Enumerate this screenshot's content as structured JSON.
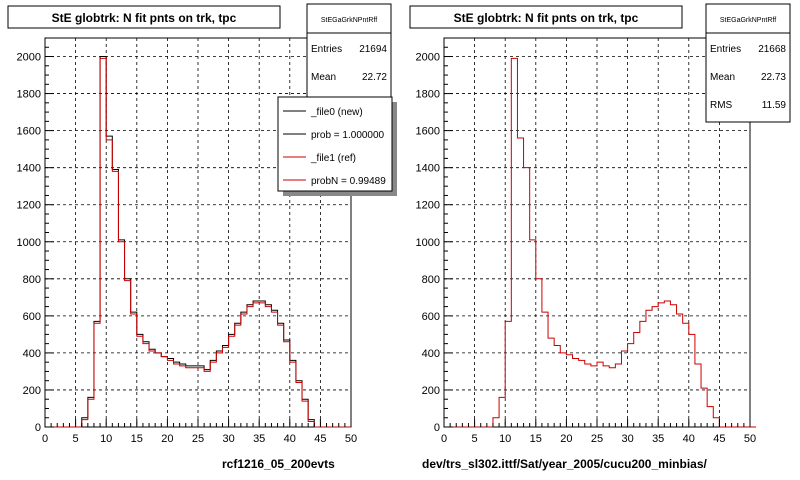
{
  "colors": {
    "new": "#000000",
    "ref": "#cc0000",
    "grid": "#000000",
    "frame": "#000000"
  },
  "left": {
    "title": "StE globtrk: N fit pnts on trk, tpc",
    "stats": {
      "name": "StEGaGrkNPntRff",
      "rows": [
        {
          "label": "Entries",
          "value": "21694"
        },
        {
          "label": "Mean",
          "value": "22.72"
        }
      ]
    },
    "legend": {
      "items": [
        {
          "label": "_file0 (new)",
          "color": "#000000"
        },
        {
          "label": "prob = 1.000000",
          "color": "#000000"
        },
        {
          "label": "_file1 (ref)",
          "color": "#cc0000"
        },
        {
          "label": "probN = 0.99489",
          "color": "#cc0000"
        }
      ]
    },
    "footer": "rcf1216_05_200evts"
  },
  "right": {
    "title": "StE globtrk: N fit pnts on trk, tpc",
    "stats": {
      "name": "StEGaGrkNPntRff",
      "rows": [
        {
          "label": "Entries",
          "value": "21668"
        },
        {
          "label": "Mean",
          "value": "22.73"
        },
        {
          "label": "RMS",
          "value": "11.59"
        }
      ]
    },
    "footer": "dev/trs_sl302.ittf/Sat/year_2005/cucu200_minbias/"
  },
  "chart_data": [
    {
      "type": "histogram",
      "title": "StE globtrk: N fit pnts on trk, tpc",
      "xlim": [
        0,
        50
      ],
      "ylim": [
        0,
        2100
      ],
      "xticks": [
        0,
        5,
        10,
        15,
        20,
        25,
        30,
        35,
        40,
        45,
        50
      ],
      "yticks": [
        0,
        200,
        400,
        600,
        800,
        1000,
        1200,
        1400,
        1600,
        1800,
        2000
      ],
      "bin_width": 1,
      "grid": true,
      "legend_position": "top-right",
      "series": [
        {
          "name": "_file0 (new)",
          "color": "#000000",
          "values": [
            0,
            0,
            0,
            0,
            0,
            0,
            50,
            160,
            570,
            2000,
            1570,
            1390,
            1010,
            800,
            620,
            500,
            460,
            420,
            400,
            380,
            370,
            350,
            340,
            330,
            330,
            330,
            310,
            360,
            410,
            440,
            500,
            560,
            620,
            660,
            680,
            680,
            660,
            630,
            560,
            470,
            360,
            250,
            150,
            40,
            0,
            0,
            0,
            0,
            0,
            0
          ]
        },
        {
          "name": "_file1 (ref)",
          "color": "#cc0000",
          "values": [
            0,
            0,
            0,
            0,
            0,
            0,
            40,
            150,
            560,
            1990,
            1550,
            1380,
            1000,
            790,
            610,
            490,
            450,
            410,
            400,
            380,
            360,
            340,
            330,
            320,
            320,
            320,
            300,
            350,
            400,
            430,
            490,
            550,
            610,
            650,
            670,
            670,
            650,
            620,
            550,
            460,
            350,
            240,
            140,
            30,
            0,
            0,
            0,
            0,
            0,
            0
          ]
        }
      ]
    },
    {
      "type": "histogram",
      "title": "StE globtrk: N fit pnts on trk, tpc",
      "xlim": [
        0,
        50
      ],
      "ylim": [
        0,
        2100
      ],
      "xticks": [
        0,
        5,
        10,
        15,
        20,
        25,
        30,
        35,
        40,
        45,
        50
      ],
      "yticks": [
        0,
        200,
        400,
        600,
        800,
        1000,
        1200,
        1400,
        1600,
        1800,
        2000
      ],
      "bin_width": 1,
      "grid": true,
      "series": [
        {
          "color": "#cc0000",
          "values": [
            0,
            0,
            0,
            0,
            0,
            0,
            0,
            0,
            50,
            160,
            570,
            1990,
            1560,
            1400,
            1010,
            800,
            620,
            480,
            440,
            400,
            390,
            370,
            360,
            340,
            330,
            350,
            330,
            320,
            340,
            410,
            450,
            510,
            570,
            630,
            650,
            670,
            680,
            660,
            610,
            560,
            500,
            340,
            210,
            110,
            50,
            0,
            0,
            0,
            0,
            0,
            0
          ]
        }
      ]
    }
  ]
}
